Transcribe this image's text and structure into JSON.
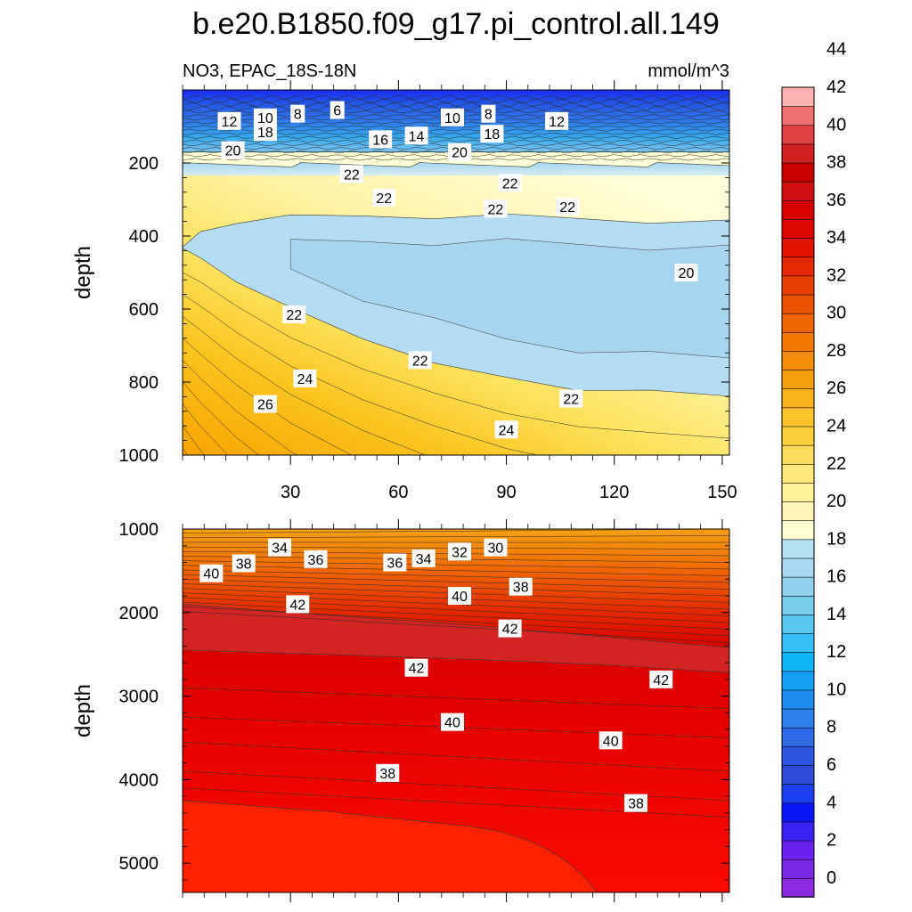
{
  "figure_title": "b.e20.B1850.f09_g17.pi_control.all.149",
  "chart_data": [
    {
      "type": "heatmap",
      "panel": "upper",
      "title_left": "NO3, EPAC_18S-18N",
      "title_right": "mmol/m^3",
      "xlabel": "",
      "ylabel": "depth",
      "xlim": [
        0,
        152
      ],
      "ylim": [
        1000,
        0
      ],
      "x_ticks": [
        30,
        60,
        90,
        120,
        150
      ],
      "y_ticks": [
        200,
        400,
        600,
        800,
        1000
      ],
      "x_tick_labels": [
        "30",
        "60",
        "90",
        "120",
        "150"
      ],
      "y_tick_labels": [
        "200",
        "400",
        "600",
        "800",
        "1000"
      ],
      "contour_labels": [
        {
          "text": "12",
          "x": 13,
          "y": 85
        },
        {
          "text": "10",
          "x": 23,
          "y": 75
        },
        {
          "text": "8",
          "x": 32,
          "y": 65
        },
        {
          "text": "6",
          "x": 43,
          "y": 55
        },
        {
          "text": "10",
          "x": 75,
          "y": 75
        },
        {
          "text": "8",
          "x": 85,
          "y": 65
        },
        {
          "text": "12",
          "x": 104,
          "y": 85
        },
        {
          "text": "16",
          "x": 55,
          "y": 135
        },
        {
          "text": "14",
          "x": 65,
          "y": 125
        },
        {
          "text": "18",
          "x": 23,
          "y": 115
        },
        {
          "text": "18",
          "x": 86,
          "y": 120
        },
        {
          "text": "20",
          "x": 14,
          "y": 165
        },
        {
          "text": "20",
          "x": 77,
          "y": 170
        },
        {
          "text": "22",
          "x": 47,
          "y": 230
        },
        {
          "text": "22",
          "x": 56,
          "y": 295
        },
        {
          "text": "22",
          "x": 91,
          "y": 255
        },
        {
          "text": "22",
          "x": 87,
          "y": 325
        },
        {
          "text": "22",
          "x": 107,
          "y": 320
        },
        {
          "text": "20",
          "x": 140,
          "y": 500
        },
        {
          "text": "22",
          "x": 31,
          "y": 615
        },
        {
          "text": "22",
          "x": 66,
          "y": 740
        },
        {
          "text": "22",
          "x": 108,
          "y": 845
        },
        {
          "text": "24",
          "x": 34,
          "y": 790
        },
        {
          "text": "26",
          "x": 23,
          "y": 860
        },
        {
          "text": "24",
          "x": 90,
          "y": 930
        }
      ],
      "zone_profile": {
        "x": [
          0,
          5,
          15,
          30,
          50,
          70,
          90,
          110,
          130,
          152
        ],
        "z_top": [
          210,
          215,
          220,
          215,
          218,
          222,
          225,
          228,
          230,
          230
        ],
        "z_core_top": [
          440,
          390,
          360,
          350,
          345,
          345,
          345,
          350,
          355,
          360
        ],
        "z_core_bot": [
          440,
          460,
          520,
          600,
          680,
          740,
          790,
          820,
          830,
          840
        ]
      }
    },
    {
      "type": "heatmap",
      "panel": "lower",
      "xlabel": "",
      "ylabel": "depth",
      "xlim": [
        0,
        152
      ],
      "ylim": [
        5350,
        1000
      ],
      "x_ticks": [
        30,
        60,
        90,
        120,
        150
      ],
      "y_ticks": [
        1000,
        2000,
        3000,
        4000,
        5000
      ],
      "y_tick_labels": [
        "1000",
        "2000",
        "3000",
        "4000",
        "5000"
      ],
      "contour_labels": [
        {
          "text": "40",
          "x": 8,
          "y": 1530
        },
        {
          "text": "38",
          "x": 17,
          "y": 1410
        },
        {
          "text": "34",
          "x": 27,
          "y": 1220
        },
        {
          "text": "36",
          "x": 37,
          "y": 1360
        },
        {
          "text": "36",
          "x": 59,
          "y": 1400
        },
        {
          "text": "34",
          "x": 67,
          "y": 1350
        },
        {
          "text": "32",
          "x": 77,
          "y": 1270
        },
        {
          "text": "30",
          "x": 87,
          "y": 1220
        },
        {
          "text": "40",
          "x": 77,
          "y": 1800
        },
        {
          "text": "38",
          "x": 94,
          "y": 1690
        },
        {
          "text": "42",
          "x": 32,
          "y": 1900
        },
        {
          "text": "42",
          "x": 91,
          "y": 2190
        },
        {
          "text": "42",
          "x": 65,
          "y": 2660
        },
        {
          "text": "42",
          "x": 133,
          "y": 2800
        },
        {
          "text": "40",
          "x": 75,
          "y": 3310
        },
        {
          "text": "40",
          "x": 119,
          "y": 3530
        },
        {
          "text": "38",
          "x": 57,
          "y": 3920
        },
        {
          "text": "38",
          "x": 126,
          "y": 4280
        }
      ],
      "band_profile": {
        "x": [
          0,
          40,
          80,
          120,
          152
        ],
        "z_42_top": [
          1900,
          2030,
          2150,
          2300,
          2420
        ],
        "z_42_bot": [
          2450,
          2500,
          2560,
          2630,
          2720
        ]
      }
    }
  ],
  "colorbar": {
    "tick_labels": [
      "0",
      "2",
      "4",
      "6",
      "8",
      "10",
      "12",
      "14",
      "16",
      "18",
      "20",
      "22",
      "24",
      "26",
      "28",
      "30",
      "32",
      "34",
      "36",
      "38",
      "40",
      "42",
      "44"
    ],
    "colors": [
      "#8a2be2",
      "#7a28e8",
      "#6a20ef",
      "#3b22f4",
      "#0b16f5",
      "#1c3ff0",
      "#2e4bd8",
      "#2e55e0",
      "#2f6aeb",
      "#2e7fec",
      "#208cf0",
      "#14a0f5",
      "#0cb6f5",
      "#34bff5",
      "#58c6f0",
      "#7bcdec",
      "#93d2ef",
      "#a7d9f2",
      "#b6e0f3",
      "#ffffd4",
      "#fff5b8",
      "#fff09a",
      "#fde77a",
      "#fcdc5c",
      "#fcd03c",
      "#fbc42a",
      "#f9b21c",
      "#f6a010",
      "#f48e08",
      "#f27a04",
      "#ef6601",
      "#ec5200",
      "#e83d00",
      "#e42800",
      "#e01200",
      "#dc0800",
      "#d80000",
      "#d01010",
      "#c80000",
      "#d02020",
      "#e04040",
      "#f07070",
      "#ffb0b0"
    ]
  }
}
